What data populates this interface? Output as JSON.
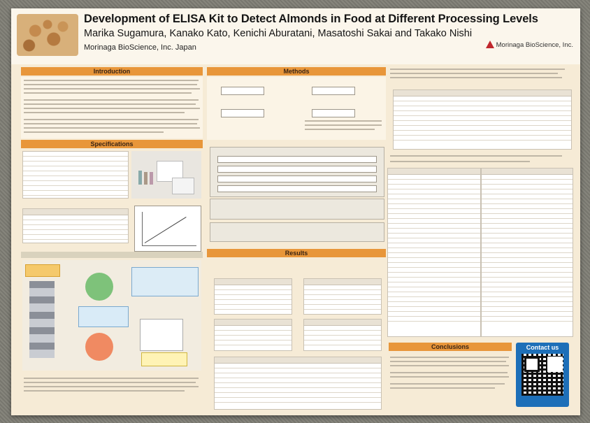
{
  "header": {
    "title": "Development of ELISA Kit to Detect Almonds in Food at Different Processing Levels",
    "authors": "Marika Sugamura, Kanako Kato, Kenichi Aburatani, Masatoshi Sakai and Takako Nishi",
    "affiliation": "Morinaga BioScience, Inc. Japan",
    "logo_text": "Morinaga BioScience, Inc."
  },
  "sections": {
    "introduction": "Introduction",
    "specifications": "Specifications",
    "methods": "Methods",
    "results": "Results",
    "conclusions": "Conclusions"
  },
  "contact": {
    "label": "Contact us",
    "icon": "qr-code-icon"
  },
  "colors": {
    "section_header": "#e8963a",
    "poster_bg": "#f6ebd6",
    "contact_blue": "#1d6fb8"
  }
}
